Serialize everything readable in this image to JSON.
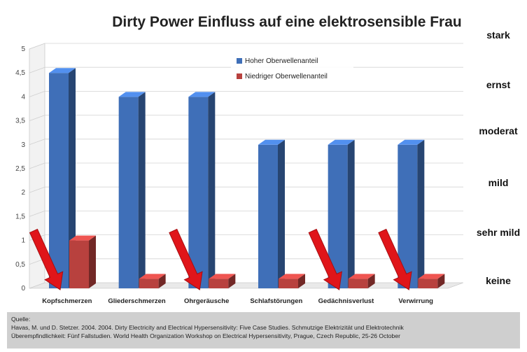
{
  "chart_data": {
    "type": "bar",
    "title": "Dirty Power Einfluss auf eine elektrosensible Frau",
    "categories": [
      "Kopfschmerzen",
      "Gliederschmerzen",
      "Ohrgeräusche",
      "Schlafstörungen",
      "Gedächnisverlust",
      "Verwirrung"
    ],
    "series": [
      {
        "name": "Hoher Oberwellenanteil",
        "values": [
          4.5,
          4,
          4,
          3,
          3,
          3
        ],
        "color": "#3f6fb8"
      },
      {
        "name": "Niedriger Oberwellenanteil",
        "values": [
          1,
          0.2,
          0.2,
          0.2,
          0.2,
          0.2
        ],
        "color": "#b8413e"
      }
    ],
    "ylim": [
      0,
      5
    ],
    "yticks": [
      "0",
      "0,5",
      "1",
      "1,5",
      "2",
      "2,5",
      "3",
      "3,5",
      "4",
      "4,5",
      "5"
    ],
    "severity_scale": [
      "keine",
      "sehr mild",
      "mild",
      "moderat",
      "ernst",
      "stark"
    ],
    "arrow_color": "#e0151a",
    "arrows_on": [
      "Kopfschmerzen",
      "Ohrgeräusche",
      "Gedächnisverlust",
      "Verwirrung"
    ],
    "legend_position": "top-center",
    "grid": true
  },
  "source": {
    "label": "Quelle:",
    "line1": "Havas, M. und D. Stetzer. 2004. 2004. Dirty Electricity and Electrical Hypersensitivity: Five Case Studies. Schmutzige Elektrizität und Elektrotechnik",
    "line2": "Überempfindlichkeit: Fünf Fallstudien. World Health Organization Workshop on Electrical Hypersensitivity, Prague, Czech Republic, 25-26 October"
  }
}
